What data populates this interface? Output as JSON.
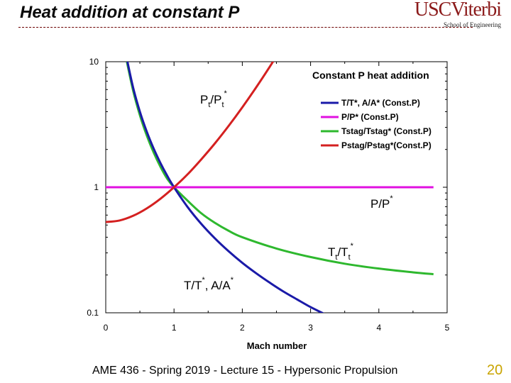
{
  "slide": {
    "title": "Heat addition at constant P",
    "logo_usc": "USC",
    "logo_viterbi": "Viterbi",
    "logo_sub": "School of Engineering",
    "footer": "AME 436 - Spring 2019 - Lecture 15 - Hypersonic Propulsion",
    "page_number": "20"
  },
  "annotations": {
    "pt_main": "P",
    "pt_sub": "t",
    "pt_slash": "/P",
    "pt_sub2": "t",
    "pt_sup": "*",
    "p_main": "P/P",
    "p_sup": "*",
    "tt_main": "T",
    "tt_sub": "t",
    "tt_slash": "/T",
    "tt_sub2": "t",
    "tt_sup": "*",
    "t_main": "T/T",
    "t_sup": "*",
    "t_mid": ", A/A",
    "t_sup2": "*"
  },
  "chart_data": {
    "type": "line",
    "title": "Constant P heat addition",
    "xlabel": "Mach number",
    "ylabel": "",
    "xlim": [
      0,
      5
    ],
    "ylim": [
      0.1,
      10
    ],
    "yscale": "log",
    "x_ticks": [
      "0",
      "1",
      "2",
      "3",
      "4",
      "5"
    ],
    "y_ticks": [
      "0.1",
      "1",
      "10"
    ],
    "legend_placement": "top-right",
    "series": [
      {
        "name": "T/T*, A/A* (Const.P)",
        "color": "#1a1aa8",
        "x": [
          0.3,
          0.4,
          0.5,
          0.6,
          0.7,
          0.8,
          0.9,
          1.0,
          1.2,
          1.4,
          1.6,
          1.8,
          2.0,
          2.2,
          2.4,
          2.6,
          2.8,
          3.0,
          3.2
        ],
        "y": [
          11.11,
          6.25,
          4.0,
          2.778,
          2.041,
          1.563,
          1.235,
          1.0,
          0.694,
          0.51,
          0.391,
          0.309,
          0.25,
          0.207,
          0.174,
          0.148,
          0.128,
          0.111,
          0.098
        ]
      },
      {
        "name": "P/P* (Const.P)",
        "color": "#e010e0",
        "x": [
          0.0,
          4.8
        ],
        "y": [
          1.0,
          1.0
        ]
      },
      {
        "name": "Tstag/Tstag* (Const.P)",
        "color": "#2eb82e",
        "x": [
          0.3,
          0.4,
          0.5,
          0.6,
          0.7,
          0.8,
          0.9,
          1.0,
          1.2,
          1.4,
          1.6,
          1.8,
          2.0,
          2.5,
          3.0,
          3.5,
          4.0,
          4.5,
          4.8
        ],
        "y": [
          10.56,
          5.91,
          3.75,
          2.59,
          1.9,
          1.46,
          1.17,
          1.0,
          0.78,
          0.62,
          0.52,
          0.45,
          0.4,
          0.325,
          0.278,
          0.246,
          0.225,
          0.21,
          0.203
        ]
      },
      {
        "name": "Pstag/Pstag*(Const.P)",
        "color": "#d42020",
        "x": [
          0.0,
          0.2,
          0.4,
          0.6,
          0.8,
          1.0,
          1.2,
          1.4,
          1.6,
          1.8,
          2.0,
          2.2,
          2.4,
          2.6
        ],
        "y": [
          0.528,
          0.543,
          0.592,
          0.678,
          0.809,
          1.0,
          1.27,
          1.67,
          2.24,
          3.08,
          4.33,
          6.21,
          9.08,
          13.5
        ]
      }
    ]
  }
}
